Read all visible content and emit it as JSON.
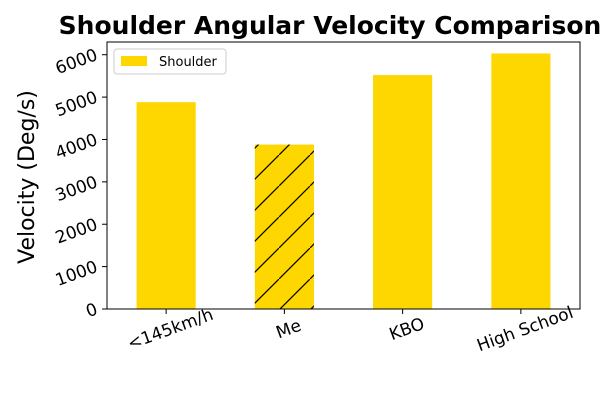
{
  "chart_data": {
    "type": "bar",
    "title": "Shoulder Angular Velocity Comparison",
    "xlabel": "",
    "ylabel": "Velocity (Deg/s)",
    "categories": [
      "<145km/h",
      "Me",
      "KBO",
      "High School"
    ],
    "series": [
      {
        "name": "Shoulder",
        "values": [
          4880,
          3880,
          5520,
          6030
        ],
        "color": "#FFD700",
        "hatched": [
          false,
          true,
          false,
          false
        ]
      }
    ],
    "ylim": [
      0,
      6300
    ],
    "yticks": [
      0,
      1000,
      2000,
      3000,
      4000,
      5000,
      6000
    ],
    "grid": false,
    "legend_position": "top-left"
  }
}
